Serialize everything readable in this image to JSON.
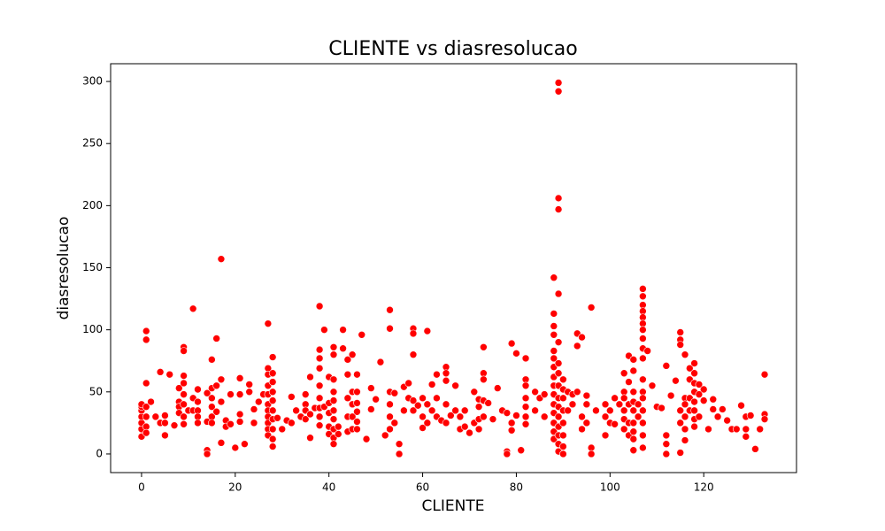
{
  "chart_data": {
    "type": "scatter",
    "title": "CLIENTE vs diasresolucao",
    "x_label": "CLIENTE",
    "y_label": "diasresolucao",
    "color": "#ff0000",
    "xlim": [
      -6.6,
      139.8
    ],
    "ylim": [
      -15,
      314.3
    ],
    "xticks": [
      0,
      20,
      40,
      60,
      80,
      100,
      120
    ],
    "yticks": [
      0,
      50,
      100,
      150,
      200,
      250,
      300
    ],
    "x": [
      0,
      0,
      0,
      0,
      0,
      0,
      0,
      1,
      1,
      1,
      1,
      1,
      1,
      1,
      2,
      3,
      4,
      4,
      5,
      5,
      5,
      6,
      7,
      8,
      8,
      8,
      8,
      9,
      9,
      9,
      9,
      9,
      9,
      9,
      9,
      10,
      11,
      11,
      11,
      12,
      12,
      12,
      12,
      12,
      14,
      14,
      14,
      14,
      15,
      15,
      15,
      15,
      15,
      15,
      16,
      16,
      16,
      17,
      17,
      17,
      17,
      18,
      18,
      19,
      19,
      20,
      21,
      21,
      21,
      21,
      22,
      23,
      23,
      24,
      24,
      25,
      26,
      27,
      27,
      27,
      27,
      27,
      27,
      27,
      27,
      27,
      27,
      27,
      28,
      28,
      28,
      28,
      28,
      28,
      28,
      28,
      28,
      28,
      29,
      30,
      31,
      32,
      32,
      33,
      34,
      35,
      35,
      35,
      35,
      36,
      36,
      36,
      37,
      38,
      38,
      38,
      38,
      38,
      38,
      38,
      38,
      38,
      39,
      39,
      40,
      40,
      40,
      40,
      40,
      41,
      41,
      41,
      41,
      41,
      41,
      41,
      41,
      41,
      41,
      42,
      42,
      43,
      43,
      44,
      44,
      44,
      44,
      44,
      45,
      45,
      45,
      45,
      45,
      46,
      46,
      46,
      46,
      46,
      46,
      47,
      48,
      49,
      49,
      50,
      51,
      52,
      53,
      53,
      53,
      53,
      53,
      53,
      54,
      54,
      55,
      55,
      56,
      56,
      57,
      57,
      58,
      58,
      58,
      58,
      58,
      59,
      60,
      60,
      60,
      61,
      61,
      61,
      62,
      62,
      63,
      63,
      63,
      64,
      65,
      65,
      65,
      65,
      65,
      66,
      67,
      67,
      68,
      68,
      69,
      69,
      70,
      71,
      71,
      72,
      72,
      72,
      72,
      73,
      73,
      73,
      73,
      73,
      74,
      75,
      76,
      77,
      78,
      78,
      78,
      79,
      79,
      79,
      80,
      80,
      81,
      82,
      82,
      82,
      82,
      82,
      82,
      82,
      84,
      84,
      85,
      86,
      86,
      88,
      88,
      88,
      88,
      88,
      88,
      88,
      88,
      88,
      88,
      88,
      88,
      88,
      88,
      88,
      89,
      89,
      89,
      89,
      89,
      89,
      89,
      89,
      89,
      89,
      89,
      89,
      89,
      89,
      89,
      89,
      90,
      90,
      90,
      90,
      90,
      90,
      90,
      90,
      91,
      91,
      92,
      92,
      93,
      93,
      93,
      94,
      94,
      94,
      95,
      95,
      95,
      96,
      96,
      96,
      97,
      99,
      99,
      99,
      100,
      100,
      101,
      101,
      102,
      103,
      103,
      103,
      103,
      103,
      103,
      104,
      104,
      104,
      104,
      104,
      105,
      105,
      105,
      105,
      105,
      105,
      105,
      105,
      105,
      106,
      106,
      107,
      107,
      107,
      107,
      107,
      107,
      107,
      107,
      107,
      107,
      107,
      107,
      107,
      107,
      107,
      107,
      107,
      108,
      109,
      110,
      111,
      112,
      112,
      112,
      112,
      113,
      114,
      115,
      115,
      115,
      115,
      115,
      115,
      116,
      116,
      116,
      116,
      116,
      116,
      117,
      117,
      117,
      117,
      118,
      118,
      118,
      118,
      118,
      118,
      118,
      118,
      119,
      119,
      119,
      120,
      120,
      121,
      122,
      122,
      123,
      124,
      125,
      126,
      127,
      128,
      129,
      129,
      129,
      130,
      131,
      132,
      133,
      133,
      133
    ],
    "values": [
      14,
      20,
      25,
      30,
      35,
      38,
      40,
      99,
      92,
      57,
      38,
      30,
      22,
      17,
      42,
      30,
      66,
      25,
      15,
      25,
      31,
      64,
      23,
      53,
      42,
      38,
      33,
      86,
      83,
      63,
      57,
      48,
      40,
      30,
      24,
      35,
      117,
      45,
      35,
      52,
      42,
      35,
      30,
      25,
      3,
      0,
      49,
      26,
      76,
      53,
      45,
      38,
      30,
      25,
      93,
      55,
      34,
      157,
      60,
      42,
      9,
      27,
      22,
      48,
      24,
      5,
      61,
      48,
      32,
      26,
      8,
      56,
      50,
      36,
      25,
      42,
      48,
      105,
      69,
      64,
      55,
      48,
      40,
      35,
      30,
      25,
      20,
      15,
      78,
      65,
      58,
      50,
      43,
      35,
      28,
      20,
      12,
      6,
      29,
      20,
      27,
      46,
      25,
      35,
      30,
      40,
      48,
      35,
      28,
      13,
      62,
      32,
      37,
      119,
      84,
      77,
      69,
      55,
      45,
      37,
      30,
      23,
      100,
      38,
      62,
      41,
      33,
      22,
      16,
      86,
      80,
      60,
      50,
      43,
      35,
      28,
      20,
      13,
      8,
      22,
      16,
      100,
      85,
      76,
      64,
      45,
      30,
      18,
      80,
      50,
      40,
      30,
      20,
      64,
      50,
      41,
      34,
      26,
      20,
      96,
      12,
      53,
      36,
      44,
      74,
      15,
      116,
      101,
      50,
      40,
      30,
      20,
      49,
      25,
      8,
      0,
      54,
      35,
      57,
      45,
      101,
      97,
      80,
      43,
      35,
      39,
      45,
      30,
      21,
      99,
      40,
      25,
      56,
      35,
      64,
      45,
      30,
      27,
      70,
      65,
      59,
      40,
      25,
      31,
      55,
      35,
      30,
      20,
      35,
      22,
      17,
      50,
      25,
      44,
      38,
      28,
      20,
      86,
      65,
      60,
      43,
      30,
      41,
      28,
      53,
      35,
      2,
      0,
      33,
      89,
      25,
      19,
      81,
      31,
      3,
      77,
      60,
      55,
      45,
      38,
      30,
      24,
      50,
      35,
      45,
      48,
      30,
      142,
      113,
      103,
      96,
      83,
      77,
      70,
      62,
      55,
      48,
      40,
      33,
      25,
      18,
      12,
      299,
      292,
      206,
      197,
      129,
      90,
      73,
      65,
      55,
      45,
      38,
      30,
      22,
      15,
      8,
      2,
      60,
      52,
      45,
      35,
      25,
      15,
      6,
      0,
      50,
      35,
      48,
      40,
      97,
      87,
      50,
      94,
      30,
      20,
      47,
      40,
      25,
      118,
      5,
      0,
      35,
      40,
      30,
      15,
      35,
      25,
      45,
      24,
      40,
      65,
      50,
      45,
      35,
      28,
      20,
      79,
      58,
      40,
      25,
      15,
      76,
      67,
      50,
      42,
      35,
      25,
      18,
      12,
      3,
      40,
      30,
      133,
      127,
      120,
      115,
      110,
      105,
      100,
      93,
      85,
      77,
      60,
      50,
      45,
      35,
      25,
      15,
      5,
      83,
      55,
      38,
      37,
      71,
      15,
      8,
      0,
      47,
      59,
      98,
      92,
      88,
      35,
      25,
      1,
      80,
      45,
      40,
      30,
      20,
      11,
      69,
      60,
      45,
      35,
      73,
      65,
      57,
      50,
      42,
      35,
      28,
      22,
      56,
      48,
      30,
      52,
      43,
      20,
      44,
      36,
      30,
      36,
      27,
      20,
      20,
      39,
      30,
      20,
      14,
      31,
      4,
      20,
      64,
      32,
      28
    ]
  }
}
